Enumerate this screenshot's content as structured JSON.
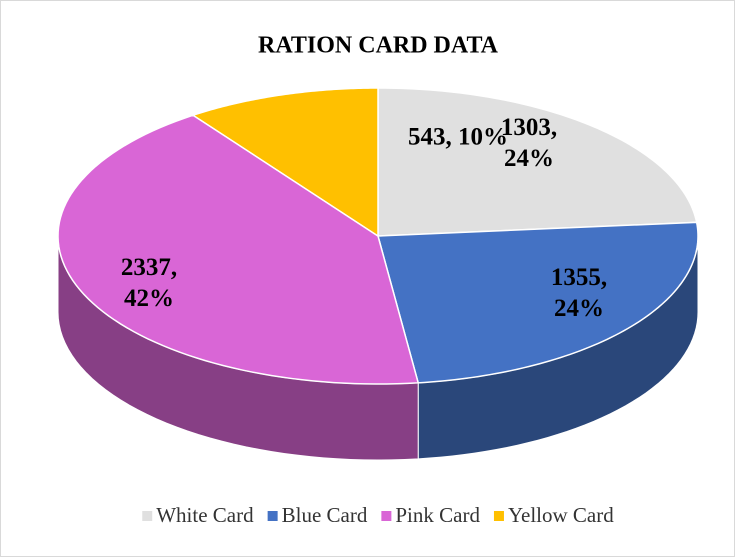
{
  "chart_data": {
    "type": "pie",
    "title": "RATION CARD DATA",
    "categories": [
      "White Card",
      "Blue Card",
      "Pink Card",
      "Yellow Card"
    ],
    "values": [
      1303,
      1355,
      2337,
      543
    ],
    "value_labels": [
      "1303, 24%",
      "1355, 24%",
      "2337, 42%",
      "543, 10%"
    ],
    "colors": [
      "#e0e0e0",
      "#4472c4",
      "#d966d6",
      "#ffc000"
    ],
    "legend": "bottom"
  }
}
